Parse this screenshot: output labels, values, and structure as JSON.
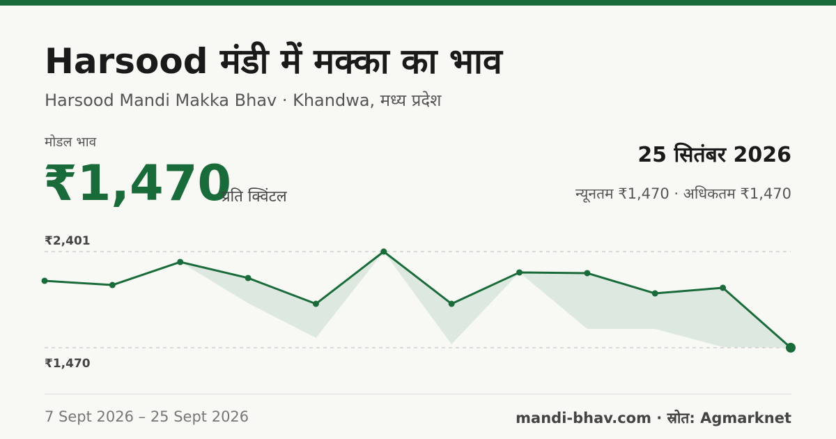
{
  "header": {
    "title": "Harsood मंडी में मक्का का भाव",
    "subtitle": "Harsood Mandi Makka Bhav · Khandwa, मध्य प्रदेश",
    "price_label": "मोडल भाव",
    "price": "₹1,470",
    "unit": "प्रति क्विंटल",
    "date": "25 सितंबर 2026",
    "range": "न्यूनतम ₹1,470 · अधिकतम ₹1,470"
  },
  "chart_data": {
    "type": "line",
    "series": [
      {
        "color": "#1a6b3a",
        "values": [
          2118,
          2077,
          2300,
          2145,
          1895,
          2401,
          1895,
          2199,
          2192,
          1996,
          2050,
          1470
        ]
      },
      {
        "color": "#dde9e0",
        "values": [
          2118,
          2077,
          2300,
          1902,
          1565,
          2401,
          1504,
          2199,
          1652,
          1652,
          1477,
          1470
        ]
      }
    ],
    "ylim": [
      1470,
      2401
    ],
    "yticks": [
      {
        "value": 2401,
        "label": "₹2,401"
      },
      {
        "value": 1470,
        "label": "₹1,470"
      }
    ],
    "grid": true
  },
  "footer": {
    "period": "7 Sept 2026 – 25 Sept 2026",
    "source": "mandi-bhav.com · स्रोत: Agmarknet"
  }
}
